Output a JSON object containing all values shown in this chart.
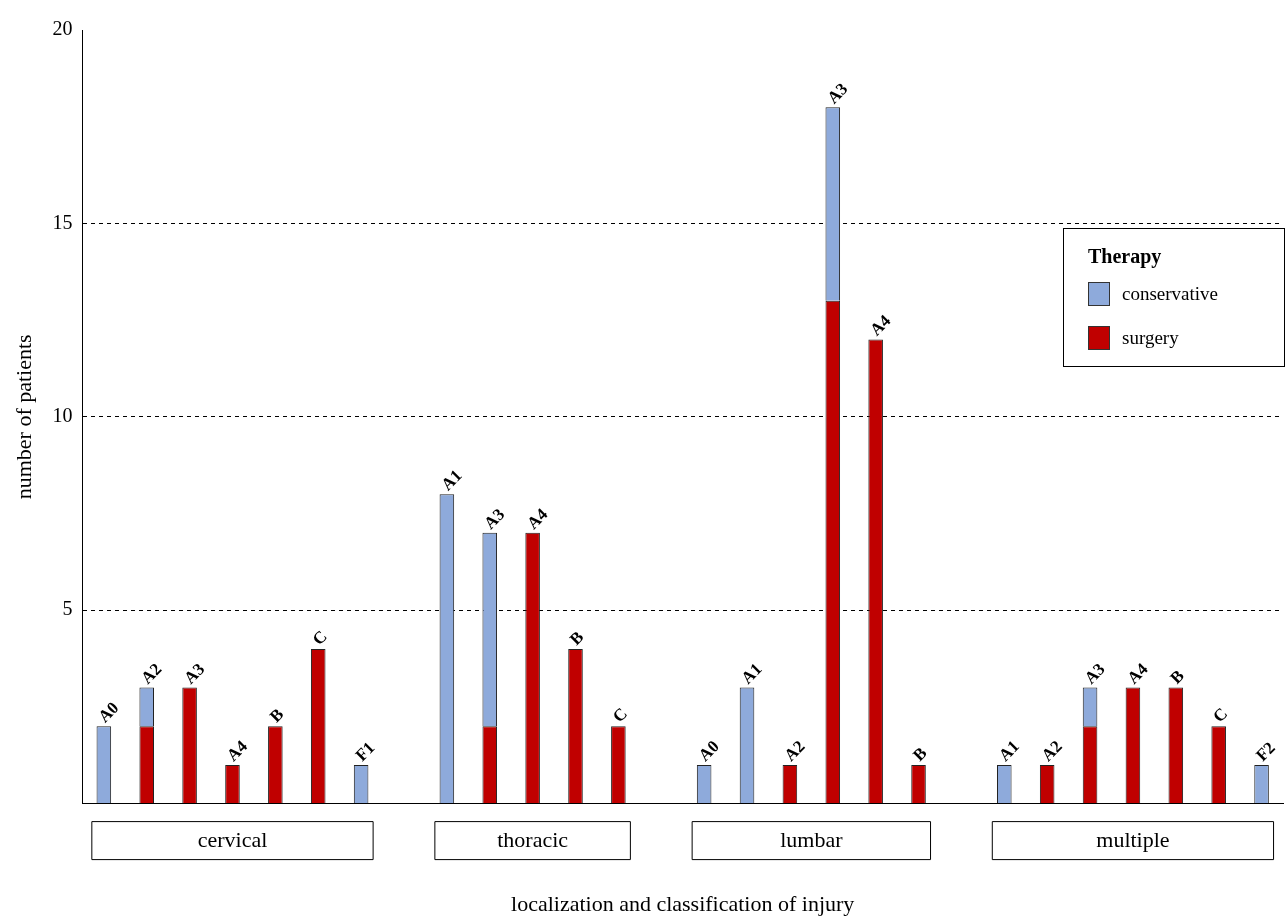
{
  "chart_data": {
    "type": "bar",
    "stacked": true,
    "xlabel": "localization and classification of injury",
    "ylabel": "number of patients",
    "legend_title": "Therapy",
    "legend": "right",
    "categories": [
      "A0",
      "A2",
      "A3",
      "A4",
      "B",
      "C",
      "F1",
      null,
      "A1",
      "A3",
      "A4",
      "B",
      "C",
      null,
      "A0",
      "A1",
      "A2",
      "A3",
      "A4",
      "B",
      null,
      "A1",
      "A2",
      "A3",
      "A4",
      "B",
      "C",
      "F2"
    ],
    "series": [
      {
        "name": "surgery",
        "color": "#c00000",
        "values": [
          0,
          2,
          3,
          1,
          2,
          4,
          0,
          null,
          0,
          2,
          7,
          4,
          2,
          null,
          0,
          0,
          1,
          13,
          12,
          1,
          null,
          0,
          1,
          2,
          3,
          3,
          2,
          0
        ]
      },
      {
        "name": "conservative",
        "color": "#8eaadb",
        "values": [
          2,
          1,
          0,
          0,
          0,
          0,
          1,
          null,
          8,
          5,
          0,
          0,
          0,
          null,
          1,
          3,
          0,
          5,
          0,
          0,
          null,
          1,
          0,
          1,
          0,
          0,
          0,
          1
        ]
      }
    ],
    "ylim": [
      0,
      20
    ],
    "yticks": [
      {
        "value": 0,
        "label": null
      },
      5,
      10,
      15,
      20
    ],
    "grid": "y",
    "annotations": [
      "cervical",
      "thoracic",
      "lumbar",
      "multiple"
    ]
  }
}
